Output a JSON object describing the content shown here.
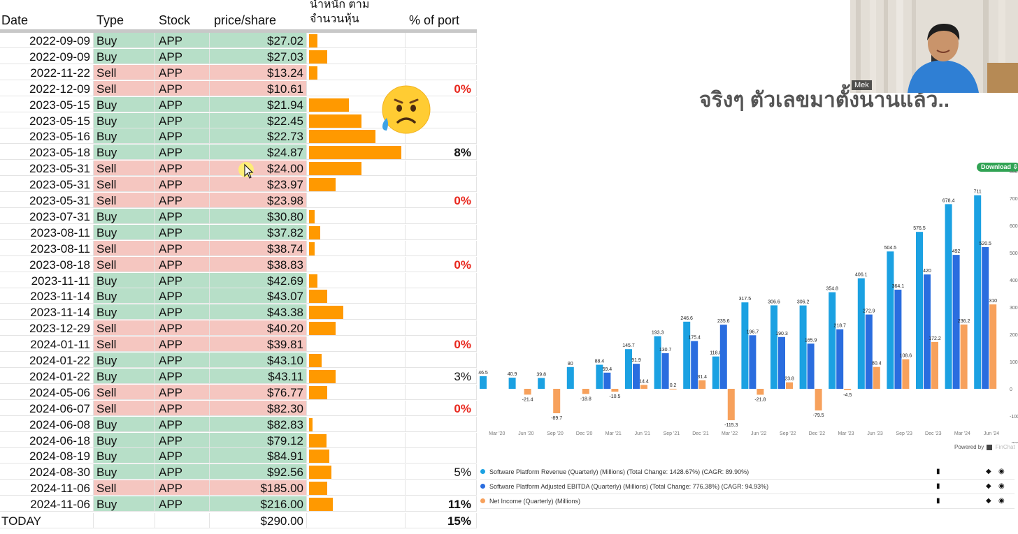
{
  "sheet": {
    "headers": {
      "date": "Date",
      "type": "Type",
      "stock": "Stock",
      "price": "price/share",
      "weight_line1": "น้ำหนัก ตาม",
      "weight_line2": "จำนวนหุ้น",
      "port": "% of port"
    },
    "rows": [
      {
        "date": "2022-09-09",
        "type": "Buy",
        "stock": "APP",
        "price": "$27.02",
        "weight": 0.09,
        "port": ""
      },
      {
        "date": "2022-09-09",
        "type": "Buy",
        "stock": "APP",
        "price": "$27.03",
        "weight": 0.2,
        "port": ""
      },
      {
        "date": "2022-11-22",
        "type": "Sell",
        "stock": "APP",
        "price": "$13.24",
        "weight": 0.09,
        "port": ""
      },
      {
        "date": "2022-12-09",
        "type": "Sell",
        "stock": "APP",
        "price": "$10.61",
        "weight": 0,
        "port": "0%"
      },
      {
        "date": "2023-05-15",
        "type": "Buy",
        "stock": "APP",
        "price": "$21.94",
        "weight": 0.43,
        "port": ""
      },
      {
        "date": "2023-05-15",
        "type": "Buy",
        "stock": "APP",
        "price": "$22.45",
        "weight": 0.57,
        "port": ""
      },
      {
        "date": "2023-05-16",
        "type": "Buy",
        "stock": "APP",
        "price": "$22.73",
        "weight": 0.72,
        "port": ""
      },
      {
        "date": "2023-05-18",
        "type": "Buy",
        "stock": "APP",
        "price": "$24.87",
        "weight": 1.0,
        "port": "8%"
      },
      {
        "date": "2023-05-31",
        "type": "Sell",
        "stock": "APP",
        "price": "$24.00",
        "weight": 0.57,
        "port": ""
      },
      {
        "date": "2023-05-31",
        "type": "Sell",
        "stock": "APP",
        "price": "$23.97",
        "weight": 0.29,
        "port": ""
      },
      {
        "date": "2023-05-31",
        "type": "Sell",
        "stock": "APP",
        "price": "$23.98",
        "weight": 0,
        "port": "0%"
      },
      {
        "date": "2023-07-31",
        "type": "Buy",
        "stock": "APP",
        "price": "$30.80",
        "weight": 0.06,
        "port": ""
      },
      {
        "date": "2023-08-11",
        "type": "Buy",
        "stock": "APP",
        "price": "$37.82",
        "weight": 0.12,
        "port": ""
      },
      {
        "date": "2023-08-11",
        "type": "Sell",
        "stock": "APP",
        "price": "$38.74",
        "weight": 0.06,
        "port": ""
      },
      {
        "date": "2023-08-18",
        "type": "Sell",
        "stock": "APP",
        "price": "$38.83",
        "weight": 0,
        "port": "0%"
      },
      {
        "date": "2023-11-11",
        "type": "Buy",
        "stock": "APP",
        "price": "$42.69",
        "weight": 0.09,
        "port": ""
      },
      {
        "date": "2023-11-14",
        "type": "Buy",
        "stock": "APP",
        "price": "$43.07",
        "weight": 0.2,
        "port": ""
      },
      {
        "date": "2023-11-14",
        "type": "Buy",
        "stock": "APP",
        "price": "$43.38",
        "weight": 0.37,
        "port": ""
      },
      {
        "date": "2023-12-29",
        "type": "Sell",
        "stock": "APP",
        "price": "$40.20",
        "weight": 0.29,
        "port": ""
      },
      {
        "date": "2024-01-11",
        "type": "Sell",
        "stock": "APP",
        "price": "$39.81",
        "weight": 0,
        "port": "0%"
      },
      {
        "date": "2024-01-22",
        "type": "Buy",
        "stock": "APP",
        "price": "$43.10",
        "weight": 0.14,
        "port": ""
      },
      {
        "date": "2024-01-22",
        "type": "Buy",
        "stock": "APP",
        "price": "$43.11",
        "weight": 0.29,
        "port": "3%"
      },
      {
        "date": "2024-05-06",
        "type": "Sell",
        "stock": "APP",
        "price": "$76.77",
        "weight": 0.2,
        "port": ""
      },
      {
        "date": "2024-06-07",
        "type": "Sell",
        "stock": "APP",
        "price": "$82.30",
        "weight": 0,
        "port": "0%"
      },
      {
        "date": "2024-06-08",
        "type": "Buy",
        "stock": "APP",
        "price": "$82.83",
        "weight": 0.04,
        "port": ""
      },
      {
        "date": "2024-06-18",
        "type": "Buy",
        "stock": "APP",
        "price": "$79.12",
        "weight": 0.19,
        "port": ""
      },
      {
        "date": "2024-08-19",
        "type": "Buy",
        "stock": "APP",
        "price": "$84.91",
        "weight": 0.22,
        "port": ""
      },
      {
        "date": "2024-08-30",
        "type": "Buy",
        "stock": "APP",
        "price": "$92.56",
        "weight": 0.24,
        "port": "5%"
      },
      {
        "date": "2024-11-06",
        "type": "Sell",
        "stock": "APP",
        "price": "$185.00",
        "weight": 0.2,
        "port": ""
      },
      {
        "date": "2024-11-06",
        "type": "Buy",
        "stock": "APP",
        "price": "$216.00",
        "weight": 0.26,
        "port": "11%"
      }
    ],
    "today": {
      "label": "TODAY",
      "price": "$290.00",
      "port": "15%"
    }
  },
  "colors": {
    "buy": "#b7dfc8",
    "sell": "#f5c6c0",
    "bar": "#ff9900",
    "zero_port": "#e8261c",
    "revenue": "#1ba1e2",
    "ebitda": "#2a6ddf",
    "net_income": "#f7a15c",
    "download": "#31a354"
  },
  "icons": {
    "emoji": "sad-but-relieved-face-icon",
    "cursor": "mouse-pointer-icon"
  },
  "video": {
    "subtitle": "จริงๆ ตัวเลขมาตั้งนานแล้ว..",
    "presenter_name": "Mek"
  },
  "chart": {
    "download_label": "Download ⇩",
    "powered_by": "Powered by",
    "powered_brand": "FinChat",
    "chart_data": {
      "type": "bar",
      "categories": [
        "Mar '20",
        "Jun '20",
        "Sep '20",
        "Dec '20",
        "Mar '21",
        "Jun '21",
        "Sep '21",
        "Dec '21",
        "Mar '22",
        "Jun '22",
        "Sep '22",
        "Dec '22",
        "Mar '23",
        "Jun '23",
        "Sep '23",
        "Dec '23",
        "Mar '24",
        "Jun '24"
      ],
      "ylim": [
        -200,
        800
      ],
      "yticks": [
        "800",
        "700",
        "600",
        "500",
        "400",
        "300",
        "200",
        "100",
        "0",
        "-100",
        "-200"
      ],
      "series": [
        {
          "name": "Software Platform Revenue (Quarterly) (Millions) (Total Change: 1428.67%) (CAGR: 89.90%)",
          "values": [
            46.5,
            40.9,
            39.8,
            80,
            88.4,
            145.7,
            193.3,
            246.6,
            118.8,
            317.5,
            306.6,
            306.2,
            354.8,
            406.1,
            504.5,
            576.5,
            678.4,
            711
          ],
          "labels": [
            "46.5",
            "40.9",
            "39.8",
            "80",
            "88.4",
            "145.7",
            "193.3",
            "246.6",
            "118.8",
            "317.5",
            "306.6",
            "306.2",
            "354.8",
            "406.1",
            "504.5",
            "576.5",
            "678.4",
            "711"
          ]
        },
        {
          "name": "Software Platform Adjusted EBITDA (Quarterly) (Millions) (Total Change: 776.38%) (CAGR: 94.93%)",
          "values": [
            null,
            null,
            null,
            null,
            59.4,
            91.9,
            130.7,
            175.4,
            235.6,
            196.7,
            190.3,
            165.9,
            218.7,
            272.9,
            364.1,
            420,
            492,
            520.5
          ],
          "labels": [
            "",
            "",
            "",
            "",
            "59.4",
            "91.9",
            "130.7",
            "175.4",
            "235.6",
            "196.7",
            "190.3",
            "165.9",
            "218.7",
            "272.9",
            "364.1",
            "420",
            "492",
            "520.5"
          ]
        },
        {
          "name": "Net Income (Quarterly) (Millions)",
          "values": [
            null,
            -21.4,
            -89.7,
            -18.8,
            -10.5,
            14.4,
            0.2,
            31.4,
            -115.3,
            -21.8,
            23.8,
            -79.5,
            -4.5,
            80.4,
            108.6,
            172.2,
            236.2,
            310
          ],
          "labels": [
            "",
            "-21.4",
            "-89.7",
            "-18.8",
            "-10.5",
            "14.4",
            "0.2",
            "31.4",
            "-115.3",
            "-21.8",
            "23.8",
            "-79.5",
            "-4.5",
            "80.4",
            "108.6",
            "172.2",
            "236.2",
            "310"
          ]
        }
      ]
    }
  }
}
